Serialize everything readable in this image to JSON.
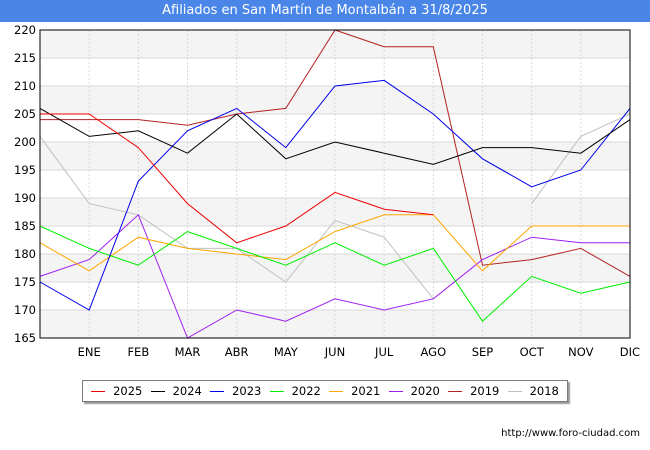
{
  "title": "Afiliados en San Martín de Montalbán a 31/8/2025",
  "footer_url": "http://www.foro-ciudad.com",
  "chart_data": {
    "type": "line",
    "title": "Afiliados en San Martín de Montalbán a 31/8/2025",
    "xlabel": "",
    "ylabel": "",
    "categories": [
      "",
      "ENE",
      "FEB",
      "MAR",
      "ABR",
      "MAY",
      "JUN",
      "JUL",
      "AGO",
      "SEP",
      "OCT",
      "NOV",
      "DIC"
    ],
    "ylim": [
      165,
      220
    ],
    "yticks": [
      165,
      170,
      175,
      180,
      185,
      190,
      195,
      200,
      205,
      210,
      215,
      220
    ],
    "grid": true,
    "legend_position": "bottom",
    "series": [
      {
        "name": "2025",
        "color": "#ee0000",
        "values": [
          205,
          205,
          199,
          189,
          182,
          185,
          191,
          188,
          187,
          null,
          null,
          null,
          null
        ]
      },
      {
        "name": "2024",
        "color": "#000000",
        "values": [
          206,
          201,
          202,
          198,
          205,
          197,
          200,
          198,
          196,
          199,
          199,
          198,
          204
        ]
      },
      {
        "name": "2023",
        "color": "#0000ee",
        "values": [
          175,
          170,
          193,
          202,
          206,
          199,
          210,
          211,
          205,
          197,
          192,
          195,
          206
        ]
      },
      {
        "name": "2022",
        "color": "#00ee00",
        "values": [
          185,
          181,
          178,
          184,
          181,
          178,
          182,
          178,
          181,
          168,
          176,
          173,
          175
        ]
      },
      {
        "name": "2021",
        "color": "#ffa500",
        "values": [
          182,
          177,
          183,
          181,
          180,
          179,
          184,
          187,
          187,
          177,
          185,
          185,
          185
        ]
      },
      {
        "name": "2020",
        "color": "#a020f0",
        "values": [
          176,
          179,
          187,
          165,
          170,
          168,
          172,
          170,
          172,
          179,
          183,
          182,
          182
        ]
      },
      {
        "name": "2019",
        "color": "#b22222",
        "values": [
          204,
          204,
          204,
          203,
          205,
          206,
          220,
          217,
          217,
          178,
          179,
          181,
          176
        ]
      },
      {
        "name": "2018",
        "color": "#c0c0c0",
        "values": [
          201,
          189,
          187,
          181,
          181,
          175,
          186,
          183,
          172,
          null,
          189,
          201,
          205
        ]
      }
    ]
  }
}
